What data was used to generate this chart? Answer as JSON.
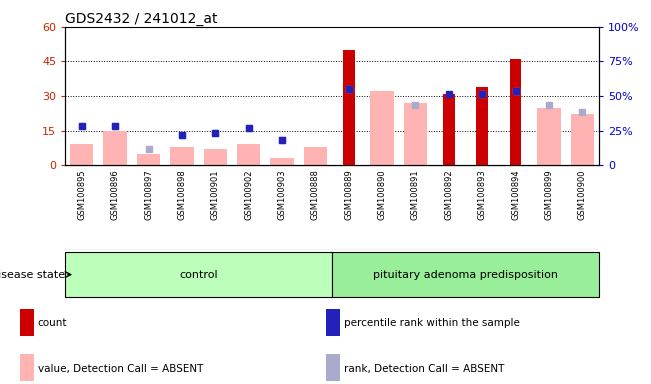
{
  "title": "GDS2432 / 241012_at",
  "samples": [
    "GSM100895",
    "GSM100896",
    "GSM100897",
    "GSM100898",
    "GSM100901",
    "GSM100902",
    "GSM100903",
    "GSM100888",
    "GSM100889",
    "GSM100890",
    "GSM100891",
    "GSM100892",
    "GSM100893",
    "GSM100894",
    "GSM100899",
    "GSM100900"
  ],
  "count_values": [
    0,
    0,
    0,
    0,
    0,
    0,
    0,
    0,
    50,
    0,
    0,
    31,
    34,
    46,
    0,
    0
  ],
  "pink_bar_values": [
    9,
    15,
    5,
    8,
    7,
    9,
    3,
    8,
    0,
    32,
    27,
    0,
    0,
    0,
    25,
    22
  ],
  "blue_square_y": [
    17,
    17,
    0,
    13,
    14,
    16,
    11,
    0,
    33,
    0,
    0,
    31,
    31,
    32,
    0,
    0
  ],
  "light_blue_square_y": [
    17,
    17,
    7,
    13,
    14,
    16,
    11,
    0,
    33,
    0,
    26,
    0,
    31,
    32,
    26,
    23
  ],
  "ylim_left": [
    0,
    60
  ],
  "ylim_right": [
    0,
    100
  ],
  "yticks_left": [
    0,
    15,
    30,
    45,
    60
  ],
  "yticks_right": [
    0,
    25,
    50,
    75,
    100
  ],
  "ytick_labels_right": [
    "0",
    "25%",
    "50%",
    "75%",
    "100%"
  ],
  "group_labels": [
    "control",
    "pituitary adenoma predisposition"
  ],
  "group_n_samples": [
    8,
    8
  ],
  "legend_labels": [
    "count",
    "percentile rank within the sample",
    "value, Detection Call = ABSENT",
    "rank, Detection Call = ABSENT"
  ],
  "red_color": "#cc0000",
  "pink_color": "#ffb3b3",
  "blue_color": "#2222bb",
  "light_blue_color": "#aaaacc",
  "control_green": "#bbffbb",
  "adenoma_green": "#99ee99",
  "left_tick_color": "#cc2200",
  "right_tick_color": "#0000cc",
  "gray_bg": "#d8d8d8"
}
